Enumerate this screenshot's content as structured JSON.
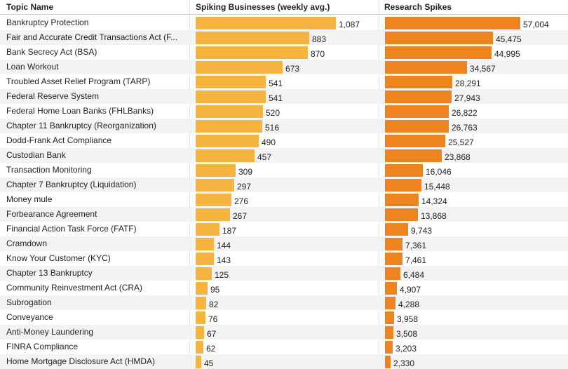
{
  "chart_data": {
    "type": "table",
    "columns": [
      "Topic Name",
      "Spiking Businesses (weekly avg.)",
      "Research Spikes"
    ],
    "colors": {
      "businesses_bar": "#f5b440",
      "research_bar": "#ee8420",
      "row_shade": "#f3f3f3"
    },
    "rows": [
      {
        "topic": "Bankruptcy Protection",
        "businesses": 1087,
        "businesses_label": "1,087",
        "research": 57004,
        "research_label": "57,004"
      },
      {
        "topic": "Fair and Accurate Credit Transactions Act (F...",
        "businesses": 883,
        "businesses_label": "883",
        "research": 45475,
        "research_label": "45,475"
      },
      {
        "topic": "Bank Secrecy Act (BSA)",
        "businesses": 870,
        "businesses_label": "870",
        "research": 44995,
        "research_label": "44,995"
      },
      {
        "topic": "Loan Workout",
        "businesses": 673,
        "businesses_label": "673",
        "research": 34567,
        "research_label": "34,567"
      },
      {
        "topic": "Troubled Asset Relief Program (TARP)",
        "businesses": 541,
        "businesses_label": "541",
        "research": 28291,
        "research_label": "28,291"
      },
      {
        "topic": "Federal Reserve System",
        "businesses": 541,
        "businesses_label": "541",
        "research": 27943,
        "research_label": "27,943"
      },
      {
        "topic": "Federal Home Loan Banks (FHLBanks)",
        "businesses": 520,
        "businesses_label": "520",
        "research": 26822,
        "research_label": "26,822"
      },
      {
        "topic": "Chapter 11 Bankruptcy (Reorganization)",
        "businesses": 516,
        "businesses_label": "516",
        "research": 26763,
        "research_label": "26,763"
      },
      {
        "topic": "Dodd-Frank Act Compliance",
        "businesses": 490,
        "businesses_label": "490",
        "research": 25527,
        "research_label": "25,527"
      },
      {
        "topic": "Custodian Bank",
        "businesses": 457,
        "businesses_label": "457",
        "research": 23868,
        "research_label": "23,868"
      },
      {
        "topic": "Transaction Monitoring",
        "businesses": 309,
        "businesses_label": "309",
        "research": 16046,
        "research_label": "16,046"
      },
      {
        "topic": "Chapter 7 Bankruptcy (Liquidation)",
        "businesses": 297,
        "businesses_label": "297",
        "research": 15448,
        "research_label": "15,448"
      },
      {
        "topic": "Money mule",
        "businesses": 276,
        "businesses_label": "276",
        "research": 14324,
        "research_label": "14,324"
      },
      {
        "topic": "Forbearance Agreement",
        "businesses": 267,
        "businesses_label": "267",
        "research": 13868,
        "research_label": "13,868"
      },
      {
        "topic": "Financial Action Task Force (FATF)",
        "businesses": 187,
        "businesses_label": "187",
        "research": 9743,
        "research_label": "9,743"
      },
      {
        "topic": "Cramdown",
        "businesses": 144,
        "businesses_label": "144",
        "research": 7361,
        "research_label": "7,361"
      },
      {
        "topic": "Know Your Customer (KYC)",
        "businesses": 143,
        "businesses_label": "143",
        "research": 7461,
        "research_label": "7,461"
      },
      {
        "topic": "Chapter 13 Bankruptcy",
        "businesses": 125,
        "businesses_label": "125",
        "research": 6484,
        "research_label": "6,484"
      },
      {
        "topic": "Community Reinvestment Act (CRA)",
        "businesses": 95,
        "businesses_label": "95",
        "research": 4907,
        "research_label": "4,907"
      },
      {
        "topic": "Subrogation",
        "businesses": 82,
        "businesses_label": "82",
        "research": 4288,
        "research_label": "4,288"
      },
      {
        "topic": "Conveyance",
        "businesses": 76,
        "businesses_label": "76",
        "research": 3958,
        "research_label": "3,958"
      },
      {
        "topic": "Anti-Money Laundering",
        "businesses": 67,
        "businesses_label": "67",
        "research": 3508,
        "research_label": "3,508"
      },
      {
        "topic": "FINRA Compliance",
        "businesses": 62,
        "businesses_label": "62",
        "research": 3203,
        "research_label": "3,203"
      },
      {
        "topic": "Home Mortgage Disclosure Act (HMDA)",
        "businesses": 45,
        "businesses_label": "45",
        "research": 2330,
        "research_label": "2,330"
      }
    ]
  }
}
